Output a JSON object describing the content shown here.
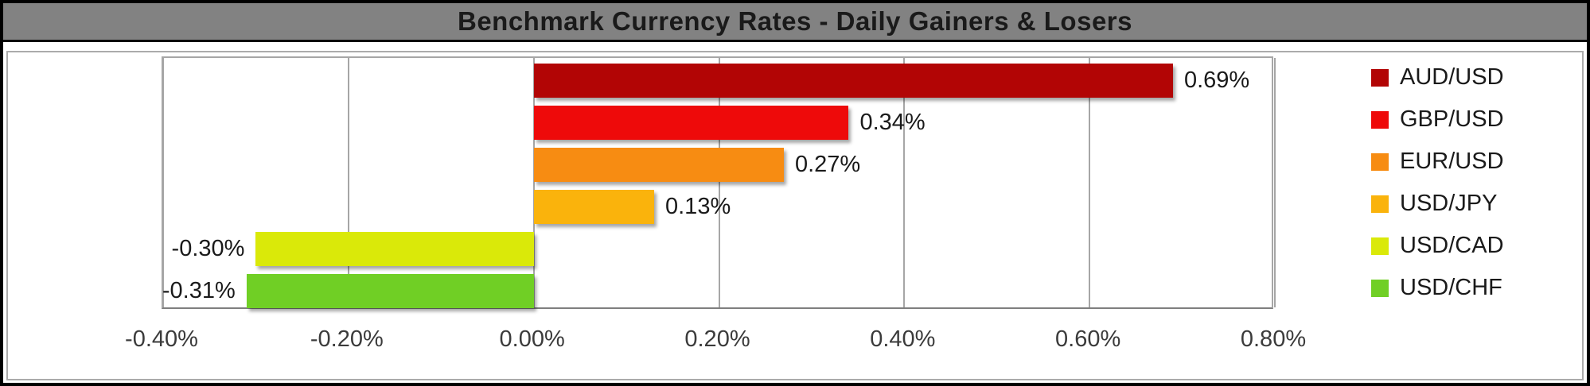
{
  "chart_data": {
    "type": "bar",
    "orientation": "horizontal",
    "title": "Benchmark Currency Rates - Daily Gainers & Losers",
    "series": [
      {
        "name": "AUD/USD",
        "value": 0.69,
        "label": "0.69%",
        "color": "#B20505"
      },
      {
        "name": "GBP/USD",
        "value": 0.34,
        "label": "0.34%",
        "color": "#EE0A0A"
      },
      {
        "name": "EUR/USD",
        "value": 0.27,
        "label": "0.27%",
        "color": "#F78C12"
      },
      {
        "name": "USD/JPY",
        "value": 0.13,
        "label": "0.13%",
        "color": "#FAB30C"
      },
      {
        "name": "USD/CAD",
        "value": -0.3,
        "label": "-0.30%",
        "color": "#DAE909"
      },
      {
        "name": "USD/CHF",
        "value": -0.31,
        "label": "-0.31%",
        "color": "#70CF25"
      }
    ],
    "x_axis": {
      "min": -0.4,
      "max": 0.8,
      "tick_step": 0.2,
      "tick_labels": [
        "-0.40%",
        "-0.20%",
        "0.00%",
        "0.20%",
        "0.40%",
        "0.60%",
        "0.80%"
      ]
    },
    "legend_position": "right",
    "grid": true
  },
  "style_colors": {
    "title_band_bg": "#828282",
    "title_text": "#1a1a1a",
    "gridline": "#a6a6a6",
    "axis_line": "#7f7f7f",
    "outer_border": "#000000"
  }
}
